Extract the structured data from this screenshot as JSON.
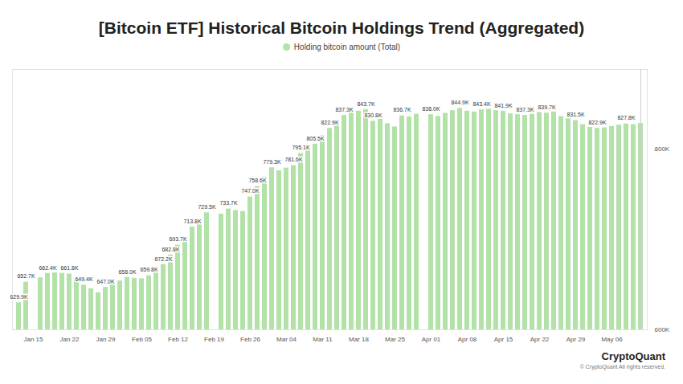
{
  "chart_data": {
    "type": "bar",
    "title": "[Bitcoin ETF] Historical Bitcoin Holdings Trend (Aggregated)",
    "caption": "CryptoQuant",
    "footnote": "© CryptoQuant All rights reserved.",
    "categories": [
      null,
      null,
      "Jan 15",
      null,
      null,
      null,
      null,
      "Jan 22",
      null,
      null,
      null,
      null,
      "Jan 29",
      null,
      null,
      null,
      null,
      "Feb 05",
      null,
      null,
      null,
      null,
      "Feb 12",
      null,
      null,
      null,
      null,
      "Feb 19",
      null,
      null,
      null,
      null,
      "Feb 26",
      null,
      null,
      null,
      null,
      "Mar 04",
      null,
      null,
      null,
      null,
      "Mar 11",
      null,
      null,
      null,
      null,
      "Mar 18",
      null,
      null,
      null,
      null,
      "Mar 25",
      null,
      null,
      null,
      null,
      "Apr 01",
      null,
      null,
      null,
      null,
      "Apr 08",
      null,
      null,
      null,
      null,
      "Apr 15",
      null,
      null,
      null,
      null,
      "Apr 22",
      null,
      null,
      null,
      null,
      "Apr 29",
      null,
      null,
      null,
      null,
      "May 06",
      null,
      null,
      null,
      null
    ],
    "series": [
      {
        "name": "Holding bitcoin amount (Total)",
        "color": "#b2e2a8",
        "values": [
          629.9,
          652.7,
          null,
          657.5,
          662.4,
          663.0,
          662.5,
          661.8,
          656.0,
          649.4,
          645.5,
          641.0,
          647.0,
          650.5,
          654.0,
          658.0,
          657.0,
          656.5,
          659.8,
          664.0,
          672.2,
          682.8,
          693.7,
          703.0,
          713.8,
          721.0,
          729.5,
          null,
          728.0,
          733.7,
          732.0,
          731.0,
          747.0,
          758.6,
          769.0,
          779.3,
          776.0,
          779.0,
          781.6,
          795.1,
          800.0,
          805.5,
          815.0,
          822.9,
          830.0,
          837.3,
          840.0,
          842.0,
          843.7,
          830.8,
          833.0,
          828.0,
          824.5,
          836.7,
          835.5,
          838.5,
          null,
          838.0,
          836.0,
          839.5,
          842.5,
          844.9,
          842.0,
          841.0,
          843.4,
          844.0,
          842.5,
          841.9,
          839.0,
          838.0,
          837.3,
          838.5,
          840.5,
          839.7,
          841.0,
          836.0,
          833.5,
          831.5,
          827.0,
          824.0,
          822.9,
          823.5,
          825.0,
          826.5,
          827.8,
          827.0,
          828.5
        ],
        "value_labels": [
          "629.9K",
          "652.7K",
          null,
          null,
          "662.4K",
          null,
          null,
          "661.8K",
          null,
          "649.4K",
          null,
          null,
          "647.0K",
          null,
          null,
          "658.0K",
          null,
          null,
          "659.8K",
          null,
          "672.2K",
          "682.8K",
          "693.7K",
          null,
          "713.8K",
          null,
          "729.5K",
          null,
          null,
          "733.7K",
          null,
          null,
          "747.0K",
          "758.6K",
          null,
          "779.3K",
          null,
          null,
          "781.6K",
          "795.1K",
          null,
          "805.5K",
          null,
          "822.9K",
          null,
          "837.3K",
          null,
          null,
          "843.7K",
          "830.8K",
          null,
          null,
          null,
          "836.7K",
          null,
          null,
          null,
          "838.0K",
          null,
          null,
          null,
          "844.9K",
          null,
          null,
          "843.4K",
          null,
          null,
          "841.9K",
          null,
          null,
          "837.3K",
          null,
          null,
          "839.7K",
          null,
          null,
          null,
          "831.5K",
          null,
          null,
          "822.9K",
          null,
          null,
          null,
          "827.8K",
          null,
          null
        ]
      }
    ],
    "ylim": [
      600,
      888
    ],
    "yticks": [
      {
        "value": 600,
        "label": "600K"
      },
      {
        "value": 800,
        "label": "800K"
      }
    ],
    "grid": false,
    "legend": "top",
    "data_labels": true
  }
}
